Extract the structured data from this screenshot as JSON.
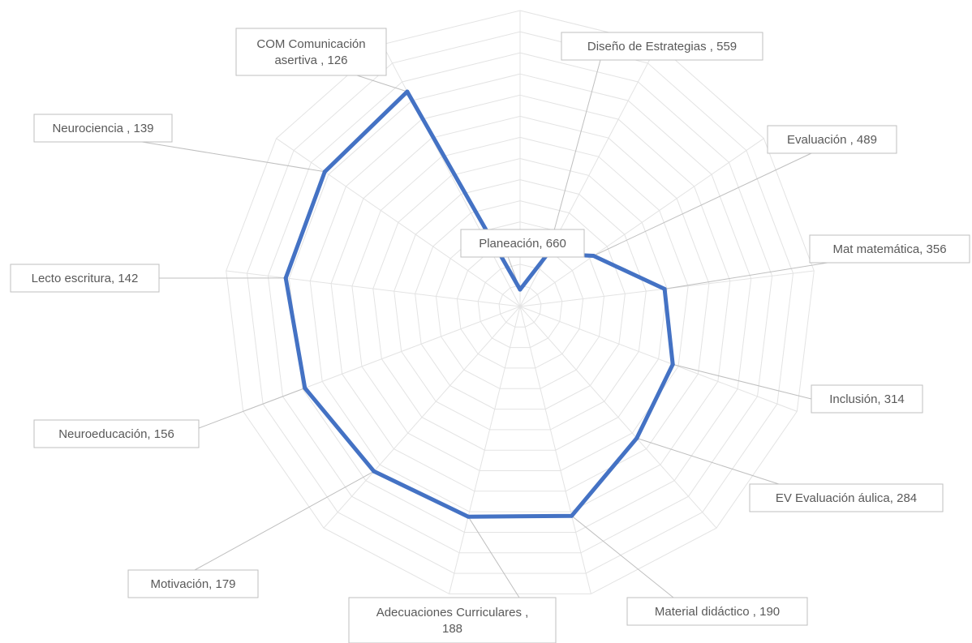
{
  "chart_data": {
    "type": "radar",
    "title": "",
    "categories": [
      "Planeación",
      "Diseño de Estrategias",
      "Evaluación",
      "Mat matemática",
      "Inclusión",
      "EV Evaluación áulica",
      "Material didáctico",
      "Adecuaciones Curriculares",
      "Motivación",
      "Neuroeducación",
      "Lecto escritura",
      "Neurociencia",
      "COM Comunicación asertiva"
    ],
    "values": [
      660,
      559,
      489,
      356,
      314,
      284,
      190,
      188,
      179,
      156,
      142,
      139,
      126
    ],
    "data_labels": [
      [
        "Planeación, 660"
      ],
      [
        "Diseño de Estrategias , 559"
      ],
      [
        "Evaluación , 489"
      ],
      [
        "Mat matemática, 356"
      ],
      [
        "Inclusión, 314"
      ],
      [
        "EV Evaluación áulica, 284"
      ],
      [
        "Material didáctico , 190"
      ],
      [
        "Adecuaciones Curriculares ,",
        "188"
      ],
      [
        "Motivación, 179"
      ],
      [
        "Neuroeducación, 156"
      ],
      [
        "Lecto escritura, 142"
      ],
      [
        "Neurociencia , 139"
      ],
      [
        "COM Comunicación",
        "asertiva , 126"
      ]
    ],
    "axis_reversed": true,
    "axis_range": [
      0,
      700
    ],
    "grid": true,
    "legend": "none",
    "series_color": "#4472c4",
    "grid_color": "#e3e3e3"
  }
}
